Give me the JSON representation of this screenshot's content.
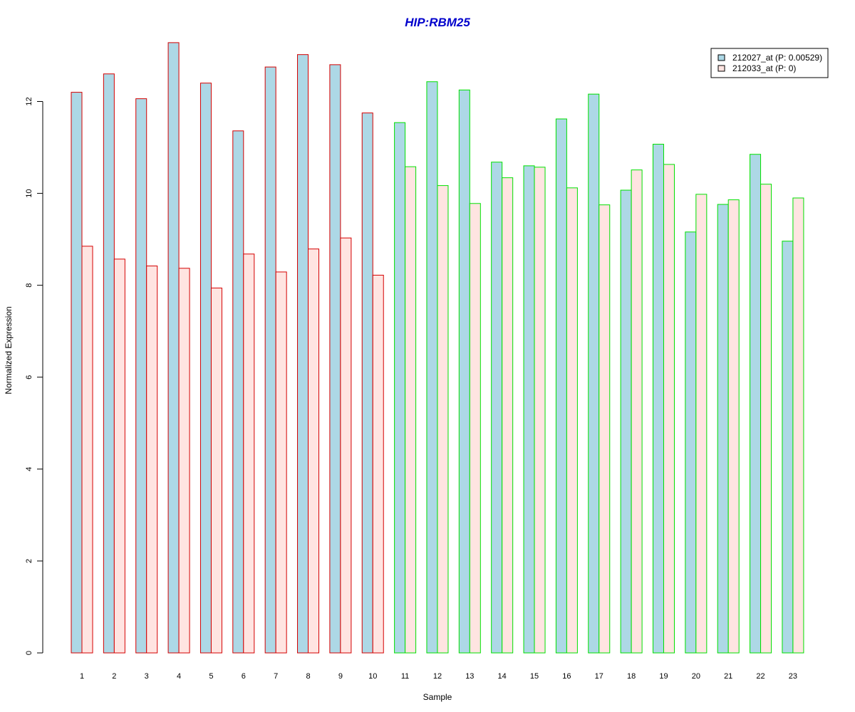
{
  "chart_data": {
    "type": "bar",
    "title": "HIP:RBM25",
    "xlabel": "Sample",
    "ylabel": "Normalized Expression",
    "ylim": [
      0,
      13.3
    ],
    "yticks": [
      "0",
      "2",
      "4",
      "6",
      "8",
      "10",
      "12"
    ],
    "categories": [
      "1",
      "2",
      "3",
      "4",
      "5",
      "6",
      "7",
      "8",
      "9",
      "10",
      "11",
      "12",
      "13",
      "14",
      "15",
      "16",
      "17",
      "18",
      "19",
      "20",
      "21",
      "22",
      "23"
    ],
    "series": [
      {
        "name": "212027_at (P: 0.00529)",
        "fill": "#add8e6",
        "values": [
          12.2,
          12.6,
          12.06,
          13.28,
          12.4,
          11.36,
          12.75,
          13.02,
          12.8,
          11.75,
          11.54,
          12.43,
          12.25,
          10.68,
          10.6,
          11.62,
          12.16,
          10.07,
          11.07,
          9.16,
          9.76,
          10.85,
          8.96
        ]
      },
      {
        "name": "212033_at (P: 0)",
        "fill": "#ffe4e1",
        "values": [
          8.85,
          8.57,
          8.42,
          8.37,
          7.94,
          8.68,
          8.29,
          8.79,
          9.03,
          8.22,
          10.58,
          10.17,
          9.78,
          10.34,
          10.57,
          10.12,
          9.75,
          10.51,
          10.63,
          9.98,
          9.86,
          10.2,
          9.9
        ]
      }
    ],
    "group_border_colors": [
      "#d40000",
      "#d40000",
      "#d40000",
      "#d40000",
      "#d40000",
      "#d40000",
      "#d40000",
      "#d40000",
      "#d40000",
      "#d40000",
      "#00e000",
      "#00e000",
      "#00e000",
      "#00e000",
      "#00e000",
      "#00e000",
      "#00e000",
      "#00e000",
      "#00e000",
      "#00e000",
      "#00e000",
      "#00e000",
      "#00e000"
    ],
    "legend_position": "top-right",
    "grid": false
  }
}
